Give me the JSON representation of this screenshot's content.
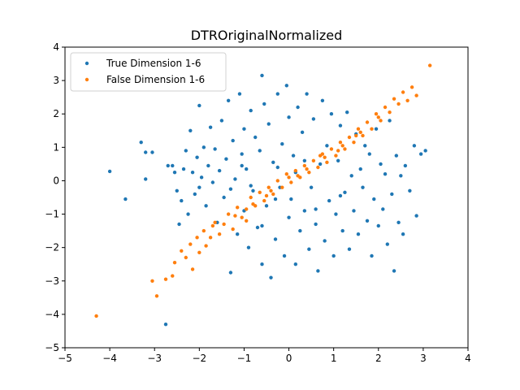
{
  "chart_data": {
    "type": "scatter",
    "title": "DTROriginalNormalized",
    "xlabel": "",
    "ylabel": "",
    "xlim": [
      -5,
      4
    ],
    "ylim": [
      -5,
      4
    ],
    "xticks": [
      "−5",
      "−4",
      "−3",
      "−2",
      "−1",
      "0",
      "1",
      "2",
      "3",
      "4"
    ],
    "yticks": [
      "−5",
      "−4",
      "−3",
      "−2",
      "−1",
      "0",
      "1",
      "2",
      "3",
      "4"
    ],
    "grid": false,
    "legend_position": "top-left",
    "series": [
      {
        "name": "True Dimension 1-6",
        "color": "#1f77b4",
        "points": [
          [
            -4.0,
            0.28
          ],
          [
            -3.65,
            -0.55
          ],
          [
            -3.3,
            1.15
          ],
          [
            -3.2,
            0.85
          ],
          [
            -3.2,
            0.05
          ],
          [
            -3.05,
            0.85
          ],
          [
            -2.75,
            -4.3
          ],
          [
            -2.7,
            0.45
          ],
          [
            -2.6,
            0.45
          ],
          [
            -2.55,
            0.25
          ],
          [
            -2.5,
            -0.3
          ],
          [
            -2.45,
            -1.3
          ],
          [
            -2.4,
            -0.6
          ],
          [
            -2.35,
            0.35
          ],
          [
            -2.3,
            0.9
          ],
          [
            -2.25,
            -1.0
          ],
          [
            -2.2,
            1.5
          ],
          [
            -2.15,
            0.25
          ],
          [
            -2.1,
            -0.4
          ],
          [
            -2.05,
            0.7
          ],
          [
            -2.0,
            2.25
          ],
          [
            -2.0,
            -0.2
          ],
          [
            -1.95,
            0.1
          ],
          [
            -1.9,
            1.0
          ],
          [
            -1.85,
            -0.75
          ],
          [
            -1.8,
            0.45
          ],
          [
            -1.75,
            1.6
          ],
          [
            -1.7,
            -0.05
          ],
          [
            -1.65,
            0.95
          ],
          [
            -1.6,
            -1.25
          ],
          [
            -1.55,
            0.3
          ],
          [
            -1.5,
            1.8
          ],
          [
            -1.45,
            -0.5
          ],
          [
            -1.4,
            0.65
          ],
          [
            -1.35,
            2.4
          ],
          [
            -1.3,
            -0.25
          ],
          [
            -1.3,
            -2.75
          ],
          [
            -1.25,
            1.2
          ],
          [
            -1.2,
            0.05
          ],
          [
            -1.15,
            -1.6
          ],
          [
            -1.1,
            2.6
          ],
          [
            -1.05,
            0.8
          ],
          [
            -1.0,
            -0.9
          ],
          [
            -1.0,
            1.55
          ],
          [
            -0.95,
            0.35
          ],
          [
            -0.9,
            -2.0
          ],
          [
            -0.85,
            2.1
          ],
          [
            -0.8,
            -0.3
          ],
          [
            -0.75,
            1.3
          ],
          [
            -0.7,
            -1.4
          ],
          [
            -0.65,
            0.9
          ],
          [
            -0.6,
            -2.5
          ],
          [
            -0.6,
            3.15
          ],
          [
            -0.55,
            2.3
          ],
          [
            -0.5,
            -0.75
          ],
          [
            -0.45,
            1.7
          ],
          [
            -0.4,
            -2.9
          ],
          [
            -0.35,
            0.55
          ],
          [
            -0.3,
            -1.75
          ],
          [
            -0.25,
            2.6
          ],
          [
            -0.2,
            -0.2
          ],
          [
            -0.15,
            1.1
          ],
          [
            -0.1,
            -2.25
          ],
          [
            -0.05,
            2.85
          ],
          [
            0.0,
            -1.1
          ],
          [
            0.0,
            1.9
          ],
          [
            0.05,
            -0.55
          ],
          [
            0.1,
            0.75
          ],
          [
            0.15,
            -2.5
          ],
          [
            0.2,
            2.2
          ],
          [
            0.25,
            -1.5
          ],
          [
            0.3,
            1.45
          ],
          [
            0.35,
            -0.9
          ],
          [
            0.4,
            2.6
          ],
          [
            0.45,
            -2.05
          ],
          [
            0.5,
            -0.2
          ],
          [
            0.55,
            1.85
          ],
          [
            0.6,
            -1.3
          ],
          [
            0.65,
            -2.7
          ],
          [
            0.7,
            0.5
          ],
          [
            0.75,
            2.4
          ],
          [
            0.8,
            -1.8
          ],
          [
            0.85,
            1.05
          ],
          [
            0.9,
            -0.6
          ],
          [
            0.95,
            2.0
          ],
          [
            1.0,
            -2.25
          ],
          [
            1.05,
            -1.0
          ],
          [
            1.1,
            0.6
          ],
          [
            1.15,
            1.65
          ],
          [
            1.2,
            -1.5
          ],
          [
            1.25,
            -0.35
          ],
          [
            1.3,
            2.05
          ],
          [
            1.35,
            -2.05
          ],
          [
            1.4,
            0.15
          ],
          [
            1.45,
            -0.9
          ],
          [
            1.5,
            1.4
          ],
          [
            1.55,
            -1.6
          ],
          [
            1.6,
            0.35
          ],
          [
            1.65,
            -0.2
          ],
          [
            1.7,
            1.05
          ],
          [
            1.75,
            -1.2
          ],
          [
            1.8,
            0.8
          ],
          [
            1.85,
            -2.25
          ],
          [
            1.9,
            -0.55
          ],
          [
            1.95,
            1.55
          ],
          [
            2.0,
            -1.35
          ],
          [
            2.05,
            0.5
          ],
          [
            2.1,
            -0.85
          ],
          [
            2.15,
            0.2
          ],
          [
            2.2,
            -1.9
          ],
          [
            2.25,
            1.8
          ],
          [
            2.3,
            -0.4
          ],
          [
            2.35,
            -2.7
          ],
          [
            2.4,
            0.75
          ],
          [
            2.45,
            -1.25
          ],
          [
            2.5,
            0.15
          ],
          [
            2.55,
            -1.6
          ],
          [
            2.6,
            0.45
          ],
          [
            2.7,
            -0.3
          ],
          [
            2.8,
            1.05
          ],
          [
            2.85,
            -1.05
          ],
          [
            2.95,
            0.8
          ],
          [
            3.05,
            0.9
          ],
          [
            -0.3,
            -0.55
          ],
          [
            0.15,
            0.25
          ],
          [
            -0.6,
            -1.35
          ],
          [
            0.6,
            -0.85
          ],
          [
            -1.05,
            0.45
          ],
          [
            0.35,
            0.6
          ],
          [
            -0.85,
            -0.15
          ],
          [
            1.15,
            -0.45
          ],
          [
            -0.25,
            0.4
          ]
        ]
      },
      {
        "name": "False Dimension 1-6",
        "color": "#ff7f0e",
        "points": [
          [
            -4.3,
            -4.05
          ],
          [
            -3.05,
            -3.0
          ],
          [
            -2.95,
            -3.45
          ],
          [
            -2.75,
            -2.95
          ],
          [
            -2.6,
            -2.85
          ],
          [
            -2.55,
            -2.45
          ],
          [
            -2.4,
            -2.1
          ],
          [
            -2.3,
            -2.3
          ],
          [
            -2.2,
            -1.9
          ],
          [
            -2.15,
            -2.65
          ],
          [
            -2.05,
            -1.7
          ],
          [
            -2.0,
            -2.15
          ],
          [
            -1.9,
            -1.5
          ],
          [
            -1.85,
            -1.95
          ],
          [
            -1.75,
            -1.7
          ],
          [
            -1.65,
            -1.25
          ],
          [
            -1.55,
            -1.6
          ],
          [
            -1.45,
            -1.3
          ],
          [
            -1.35,
            -1.0
          ],
          [
            -1.25,
            -1.45
          ],
          [
            -1.15,
            -0.8
          ],
          [
            -1.05,
            -1.1
          ],
          [
            -0.95,
            -0.85
          ],
          [
            -0.85,
            -0.5
          ],
          [
            -0.75,
            -0.75
          ],
          [
            -0.65,
            -0.35
          ],
          [
            -0.55,
            -0.6
          ],
          [
            -0.45,
            -0.2
          ],
          [
            -0.35,
            -0.4
          ],
          [
            -0.25,
            0.0
          ],
          [
            -0.15,
            -0.2
          ],
          [
            -0.05,
            0.2
          ],
          [
            0.05,
            -0.05
          ],
          [
            0.15,
            0.3
          ],
          [
            0.25,
            0.1
          ],
          [
            0.35,
            0.45
          ],
          [
            0.45,
            0.25
          ],
          [
            0.55,
            0.6
          ],
          [
            0.65,
            0.4
          ],
          [
            0.75,
            0.8
          ],
          [
            0.85,
            0.55
          ],
          [
            0.95,
            0.95
          ],
          [
            1.05,
            0.75
          ],
          [
            1.15,
            1.15
          ],
          [
            1.25,
            0.95
          ],
          [
            1.35,
            1.3
          ],
          [
            1.45,
            1.15
          ],
          [
            1.55,
            1.55
          ],
          [
            1.65,
            1.35
          ],
          [
            1.75,
            1.75
          ],
          [
            1.85,
            1.55
          ],
          [
            1.95,
            2.0
          ],
          [
            2.05,
            1.8
          ],
          [
            2.15,
            2.2
          ],
          [
            2.25,
            2.05
          ],
          [
            2.35,
            2.45
          ],
          [
            2.45,
            2.3
          ],
          [
            2.55,
            2.65
          ],
          [
            2.65,
            2.4
          ],
          [
            2.75,
            2.8
          ],
          [
            2.85,
            2.55
          ],
          [
            3.15,
            3.45
          ],
          [
            -1.7,
            -1.35
          ],
          [
            -1.2,
            -1.05
          ],
          [
            -0.8,
            -0.7
          ],
          [
            -0.4,
            -0.3
          ],
          [
            0.0,
            0.1
          ],
          [
            0.4,
            0.35
          ],
          [
            0.8,
            0.7
          ],
          [
            1.2,
            1.05
          ],
          [
            1.6,
            1.45
          ],
          [
            2.0,
            1.9
          ],
          [
            -0.95,
            -1.2
          ],
          [
            -0.5,
            -0.45
          ],
          [
            0.2,
            0.15
          ],
          [
            0.7,
            0.75
          ],
          [
            1.1,
            0.9
          ],
          [
            1.5,
            1.35
          ]
        ]
      }
    ]
  }
}
